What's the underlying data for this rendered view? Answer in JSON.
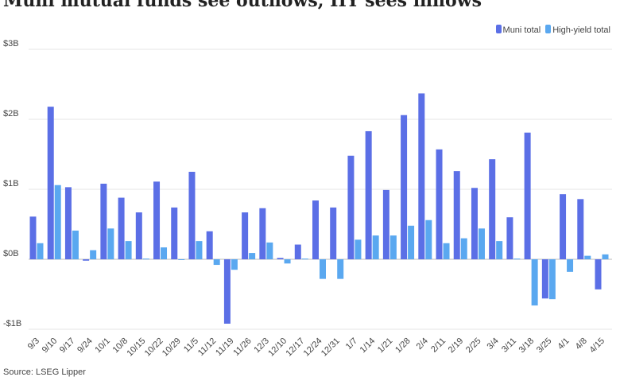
{
  "chart_data": {
    "type": "bar",
    "title": "Muni mutual funds see outflows, HY sees inflows",
    "source": "Source: LSEG Lipper",
    "ylim": [
      -1,
      3
    ],
    "yticks": [
      {
        "v": 3,
        "label": "$3B"
      },
      {
        "v": 2,
        "label": "$2B"
      },
      {
        "v": 1,
        "label": "$1B"
      },
      {
        "v": 0,
        "label": "$0B"
      },
      {
        "v": -1,
        "label": "-$1B"
      }
    ],
    "grid": true,
    "legend": "top-right",
    "categories": [
      "9/3",
      "9/10",
      "9/17",
      "9/24",
      "10/1",
      "10/8",
      "10/15",
      "10/22",
      "10/29",
      "11/5",
      "11/12",
      "11/19",
      "11/26",
      "12/3",
      "12/10",
      "12/17",
      "12/24",
      "12/31",
      "1/7",
      "1/14",
      "1/21",
      "1/28",
      "2/4",
      "2/11",
      "2/19",
      "2/25",
      "3/4",
      "3/11",
      "3/18",
      "3/25",
      "4/1",
      "4/8",
      "4/15"
    ],
    "series": [
      {
        "name": "Muni total",
        "color": "#5b6fe6",
        "values": [
          0.61,
          2.18,
          1.03,
          -0.02,
          1.08,
          0.88,
          0.67,
          1.11,
          0.74,
          1.25,
          0.4,
          -0.92,
          0.67,
          0.73,
          0.02,
          0.21,
          0.84,
          0.74,
          1.48,
          1.83,
          0.99,
          2.06,
          2.37,
          1.57,
          1.26,
          1.02,
          1.43,
          0.6,
          1.81,
          -0.56,
          0.93,
          0.86,
          -0.43
        ]
      },
      {
        "name": "High-yield total",
        "color": "#5aa8f0",
        "values": [
          0.23,
          1.06,
          0.41,
          0.13,
          0.44,
          0.26,
          0.01,
          0.17,
          0.0,
          0.26,
          -0.08,
          -0.15,
          0.09,
          0.24,
          -0.06,
          0.01,
          -0.28,
          -0.28,
          0.28,
          0.34,
          0.34,
          0.48,
          0.56,
          0.23,
          0.3,
          0.44,
          0.26,
          0.01,
          -0.66,
          -0.57,
          -0.18,
          0.05,
          0.07
        ]
      }
    ]
  }
}
